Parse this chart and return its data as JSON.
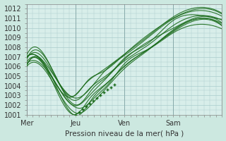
{
  "title": "",
  "xlabel": "Pression niveau de la mer( hPa )",
  "ylabel": "",
  "ylim": [
    1001,
    1012.5
  ],
  "xlim": [
    0,
    4.0
  ],
  "yticks": [
    1001,
    1002,
    1003,
    1004,
    1005,
    1006,
    1007,
    1008,
    1009,
    1010,
    1011,
    1012
  ],
  "xtick_labels": [
    "Mer",
    "Jeu",
    "Ven",
    "Sam"
  ],
  "xtick_positions": [
    0,
    1,
    2,
    3
  ],
  "bg_color": "#cce8e0",
  "plot_bg_color": "#d8eeea",
  "grid_color": "#aacccc",
  "line_color": "#1a6b1a",
  "vline_positions": [
    0,
    1,
    2,
    3
  ],
  "lines_params": [
    [
      1,
      1006.0,
      1001.0,
      1.05,
      1011.0
    ],
    [
      2,
      1006.2,
      1001.3,
      1.0,
      1010.8
    ],
    [
      3,
      1006.5,
      1001.8,
      1.0,
      1011.2
    ],
    [
      4,
      1006.8,
      1002.0,
      1.05,
      1011.5
    ],
    [
      5,
      1007.0,
      1002.5,
      1.0,
      1011.8
    ],
    [
      6,
      1007.2,
      1003.0,
      0.95,
      1012.0
    ],
    [
      7,
      1006.3,
      1001.5,
      1.1,
      1010.5
    ],
    [
      8,
      1006.8,
      1002.2,
      1.0,
      1011.3
    ],
    [
      9,
      1007.0,
      1002.8,
      0.9,
      1012.2
    ],
    [
      10,
      1006.1,
      1001.2,
      1.05,
      1010.9
    ]
  ]
}
